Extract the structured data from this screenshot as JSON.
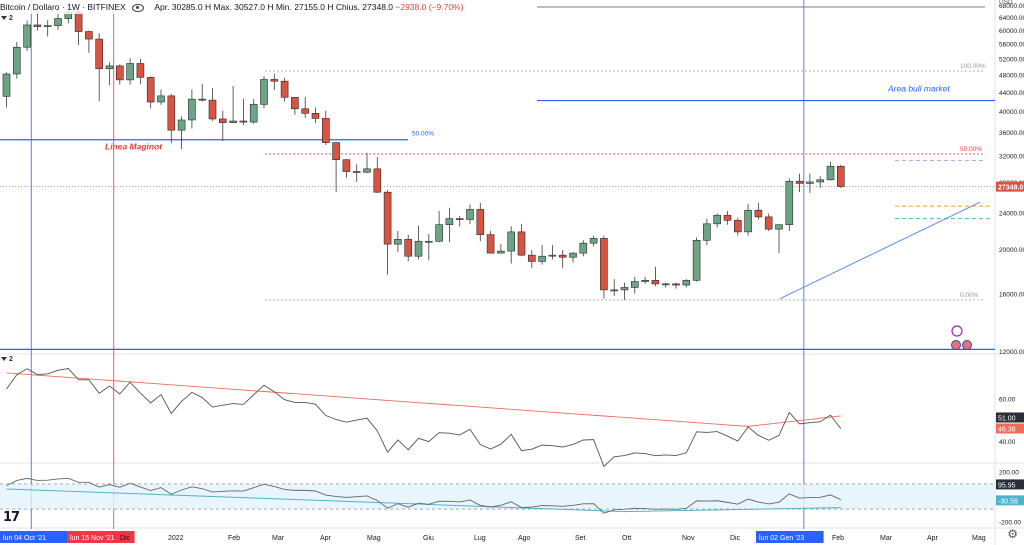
{
  "header": {
    "title": "Bitcoin / Dollaro · 1W · BITFINEX",
    "ohlc": "Apr. 30285.0  H  Max. 30527.0  H  Min. 27155.0  H  Chius. 27348.0",
    "change": "−2938.0 (−9.70%)"
  },
  "pane_badges": {
    "main": "2",
    "rsi": "2"
  },
  "currency_label": "USD",
  "price_axis": [
    "68000.00",
    "64000.00",
    "60000.00",
    "56000.00",
    "52000.00",
    "48000.00",
    "44000.00",
    "40000.00",
    "36000.00",
    "32000.00",
    "28000.00",
    "24000.00",
    "20000.00",
    "16000.00",
    "12000.00"
  ],
  "rsi_axis": [
    "60.00",
    "40.00"
  ],
  "cci_axis": [
    "200.00",
    "-200.00"
  ],
  "time_axis": [
    {
      "label": "lun 04 Oct '21",
      "highlight": "blue"
    },
    {
      "label": "lun 15 Nov '21",
      "highlight": "red"
    },
    {
      "label": "Dic"
    },
    {
      "label": "2022"
    },
    {
      "label": "Feb"
    },
    {
      "label": "Mar"
    },
    {
      "label": "Apr"
    },
    {
      "label": "Mag"
    },
    {
      "label": "Giu"
    },
    {
      "label": "Lug"
    },
    {
      "label": "Ago"
    },
    {
      "label": "Set"
    },
    {
      "label": "Ott"
    },
    {
      "label": "Nov"
    },
    {
      "label": "Dic"
    },
    {
      "label": "lun 02 Gen '23",
      "highlight": "blue"
    },
    {
      "label": "Feb"
    },
    {
      "label": "Mar"
    },
    {
      "label": "Apr"
    },
    {
      "label": "Mag"
    }
  ],
  "annotations": {
    "maginot": "Linea Maginot",
    "bull": "Area bull market",
    "fib_left_50": "50.00%",
    "fib_100": "100.00%",
    "fib_50": "50.00%",
    "fib_0": "0.00%"
  },
  "price_badges": {
    "last": "27348.0",
    "rsi_a": "51.00",
    "rsi_b": "46.38",
    "cci_a": "95.95",
    "cci_b": "-30.58"
  },
  "colors": {
    "up": "#6ba583",
    "down": "#d75442",
    "blue_line": "#2962ff",
    "red_vline": "#f23645",
    "ma_red": "#ef6c5a",
    "cci_ma": "#4fb3c9"
  },
  "chart_data": {
    "type": "candlestick",
    "timeframe": "1W",
    "symbol": "BTCUSD",
    "ylim": [
      12000,
      69000
    ],
    "candles": [
      {
        "t": "2021-09-27",
        "o": 43000,
        "h": 48500,
        "l": 40700,
        "c": 48100
      },
      {
        "t": "2021-10-04",
        "o": 48100,
        "h": 56500,
        "l": 47000,
        "c": 55000
      },
      {
        "t": "2021-10-11",
        "o": 55000,
        "h": 62900,
        "l": 54000,
        "c": 61500
      },
      {
        "t": "2021-10-18",
        "o": 61500,
        "h": 67000,
        "l": 59800,
        "c": 61000
      },
      {
        "t": "2021-10-25",
        "o": 61000,
        "h": 63000,
        "l": 58000,
        "c": 61300
      },
      {
        "t": "2021-11-01",
        "o": 61300,
        "h": 66500,
        "l": 60000,
        "c": 63500
      },
      {
        "t": "2021-11-08",
        "o": 63500,
        "h": 69000,
        "l": 62000,
        "c": 65500
      },
      {
        "t": "2021-11-15",
        "o": 65500,
        "h": 66300,
        "l": 55600,
        "c": 59500
      },
      {
        "t": "2021-11-22",
        "o": 59500,
        "h": 59800,
        "l": 53500,
        "c": 57300
      },
      {
        "t": "2021-11-29",
        "o": 57300,
        "h": 59000,
        "l": 42000,
        "c": 49400
      },
      {
        "t": "2021-12-06",
        "o": 49400,
        "h": 51000,
        "l": 45500,
        "c": 50100
      },
      {
        "t": "2021-12-13",
        "o": 50100,
        "h": 50500,
        "l": 45600,
        "c": 46700
      },
      {
        "t": "2021-12-20",
        "o": 46700,
        "h": 52000,
        "l": 45600,
        "c": 50700
      },
      {
        "t": "2021-12-27",
        "o": 50700,
        "h": 51900,
        "l": 45700,
        "c": 47300
      },
      {
        "t": "2022-01-03",
        "o": 47300,
        "h": 47500,
        "l": 40500,
        "c": 41800
      },
      {
        "t": "2022-01-10",
        "o": 41800,
        "h": 44500,
        "l": 41200,
        "c": 43100
      },
      {
        "t": "2022-01-17",
        "o": 43100,
        "h": 43500,
        "l": 34000,
        "c": 36300
      },
      {
        "t": "2022-01-24",
        "o": 36300,
        "h": 38900,
        "l": 33000,
        "c": 38200
      },
      {
        "t": "2022-01-31",
        "o": 38200,
        "h": 44500,
        "l": 36600,
        "c": 42400
      },
      {
        "t": "2022-02-07",
        "o": 42400,
        "h": 45800,
        "l": 41900,
        "c": 42200
      },
      {
        "t": "2022-02-14",
        "o": 42200,
        "h": 44800,
        "l": 38000,
        "c": 38400
      },
      {
        "t": "2022-02-21",
        "o": 38400,
        "h": 40000,
        "l": 34400,
        "c": 37700
      },
      {
        "t": "2022-02-28",
        "o": 37700,
        "h": 45300,
        "l": 37600,
        "c": 38000
      },
      {
        "t": "2022-03-07",
        "o": 38000,
        "h": 42500,
        "l": 37200,
        "c": 37800
      },
      {
        "t": "2022-03-14",
        "o": 37800,
        "h": 42400,
        "l": 37500,
        "c": 41300
      },
      {
        "t": "2022-03-21",
        "o": 41300,
        "h": 47600,
        "l": 40500,
        "c": 46800
      },
      {
        "t": "2022-03-28",
        "o": 46800,
        "h": 48200,
        "l": 44400,
        "c": 46400
      },
      {
        "t": "2022-04-04",
        "o": 46400,
        "h": 47200,
        "l": 41900,
        "c": 42800
      },
      {
        "t": "2022-04-11",
        "o": 42800,
        "h": 42900,
        "l": 39200,
        "c": 40400
      },
      {
        "t": "2022-04-18",
        "o": 40400,
        "h": 42900,
        "l": 38600,
        "c": 39500
      },
      {
        "t": "2022-04-25",
        "o": 39500,
        "h": 40700,
        "l": 37600,
        "c": 38500
      },
      {
        "t": "2022-05-02",
        "o": 38500,
        "h": 40000,
        "l": 33700,
        "c": 34100
      },
      {
        "t": "2022-05-09",
        "o": 34100,
        "h": 34200,
        "l": 26600,
        "c": 31300
      },
      {
        "t": "2022-05-16",
        "o": 31300,
        "h": 31400,
        "l": 28600,
        "c": 29500
      },
      {
        "t": "2022-05-23",
        "o": 29500,
        "h": 30600,
        "l": 28000,
        "c": 29400
      },
      {
        "t": "2022-05-30",
        "o": 29400,
        "h": 32400,
        "l": 29300,
        "c": 29900
      },
      {
        "t": "2022-06-06",
        "o": 29900,
        "h": 31700,
        "l": 26500,
        "c": 26600
      },
      {
        "t": "2022-06-13",
        "o": 26600,
        "h": 26900,
        "l": 17600,
        "c": 20500
      },
      {
        "t": "2022-06-20",
        "o": 20500,
        "h": 21900,
        "l": 19700,
        "c": 21000
      },
      {
        "t": "2022-06-27",
        "o": 21000,
        "h": 21500,
        "l": 18800,
        "c": 19300
      },
      {
        "t": "2022-07-04",
        "o": 19300,
        "h": 22500,
        "l": 19000,
        "c": 20800
      },
      {
        "t": "2022-07-11",
        "o": 20800,
        "h": 21600,
        "l": 18900,
        "c": 20800
      },
      {
        "t": "2022-07-18",
        "o": 20800,
        "h": 24200,
        "l": 20700,
        "c": 22600
      },
      {
        "t": "2022-07-25",
        "o": 22600,
        "h": 24600,
        "l": 20700,
        "c": 23300
      },
      {
        "t": "2022-08-01",
        "o": 23300,
        "h": 23600,
        "l": 22400,
        "c": 23200
      },
      {
        "t": "2022-08-08",
        "o": 23200,
        "h": 25000,
        "l": 22700,
        "c": 24400
      },
      {
        "t": "2022-08-15",
        "o": 24400,
        "h": 25200,
        "l": 20800,
        "c": 21500
      },
      {
        "t": "2022-08-22",
        "o": 21500,
        "h": 21900,
        "l": 19600,
        "c": 19600
      },
      {
        "t": "2022-08-29",
        "o": 19600,
        "h": 20500,
        "l": 19600,
        "c": 19800
      },
      {
        "t": "2022-09-05",
        "o": 19800,
        "h": 22400,
        "l": 18600,
        "c": 21800
      },
      {
        "t": "2022-09-12",
        "o": 21800,
        "h": 22700,
        "l": 19300,
        "c": 19400
      },
      {
        "t": "2022-09-19",
        "o": 19400,
        "h": 19900,
        "l": 18200,
        "c": 18800
      },
      {
        "t": "2022-09-26",
        "o": 18800,
        "h": 20400,
        "l": 18500,
        "c": 19300
      },
      {
        "t": "2022-10-03",
        "o": 19300,
        "h": 20400,
        "l": 19000,
        "c": 19400
      },
      {
        "t": "2022-10-10",
        "o": 19400,
        "h": 19900,
        "l": 18200,
        "c": 19200
      },
      {
        "t": "2022-10-17",
        "o": 19200,
        "h": 19700,
        "l": 18700,
        "c": 19600
      },
      {
        "t": "2022-10-24",
        "o": 19600,
        "h": 20900,
        "l": 19300,
        "c": 20600
      },
      {
        "t": "2022-10-31",
        "o": 20600,
        "h": 21400,
        "l": 20300,
        "c": 21100
      },
      {
        "t": "2022-11-07",
        "o": 21100,
        "h": 21400,
        "l": 15600,
        "c": 16300
      },
      {
        "t": "2022-11-14",
        "o": 16300,
        "h": 17200,
        "l": 15800,
        "c": 16300
      },
      {
        "t": "2022-11-21",
        "o": 16300,
        "h": 16900,
        "l": 15500,
        "c": 16500
      },
      {
        "t": "2022-11-28",
        "o": 16500,
        "h": 17400,
        "l": 16000,
        "c": 17000
      },
      {
        "t": "2022-12-05",
        "o": 17000,
        "h": 17400,
        "l": 16800,
        "c": 17100
      },
      {
        "t": "2022-12-12",
        "o": 17100,
        "h": 18300,
        "l": 16600,
        "c": 16800
      },
      {
        "t": "2022-12-19",
        "o": 16800,
        "h": 16900,
        "l": 16500,
        "c": 16800
      },
      {
        "t": "2022-12-26",
        "o": 16800,
        "h": 16900,
        "l": 16400,
        "c": 16700
      },
      {
        "t": "2023-01-02",
        "o": 16700,
        "h": 17200,
        "l": 16500,
        "c": 17100
      },
      {
        "t": "2023-01-09",
        "o": 17100,
        "h": 21200,
        "l": 17000,
        "c": 20900
      },
      {
        "t": "2023-01-16",
        "o": 20900,
        "h": 23300,
        "l": 20400,
        "c": 22700
      },
      {
        "t": "2023-01-23",
        "o": 22700,
        "h": 23900,
        "l": 22300,
        "c": 23700
      },
      {
        "t": "2023-01-30",
        "o": 23700,
        "h": 24200,
        "l": 22600,
        "c": 23100
      },
      {
        "t": "2023-02-06",
        "o": 23100,
        "h": 23400,
        "l": 21400,
        "c": 21800
      },
      {
        "t": "2023-02-13",
        "o": 21800,
        "h": 25100,
        "l": 21400,
        "c": 24300
      },
      {
        "t": "2023-02-20",
        "o": 24300,
        "h": 25200,
        "l": 23200,
        "c": 23500
      },
      {
        "t": "2023-02-27",
        "o": 23500,
        "h": 23900,
        "l": 21900,
        "c": 22100
      },
      {
        "t": "2023-03-06",
        "o": 22100,
        "h": 22300,
        "l": 19600,
        "c": 22600
      },
      {
        "t": "2023-03-13",
        "o": 22600,
        "h": 28500,
        "l": 21900,
        "c": 28100
      },
      {
        "t": "2023-03-20",
        "o": 28100,
        "h": 29200,
        "l": 26600,
        "c": 27800
      },
      {
        "t": "2023-03-27",
        "o": 27800,
        "h": 29200,
        "l": 26500,
        "c": 28000
      },
      {
        "t": "2023-04-03",
        "o": 28000,
        "h": 28800,
        "l": 27200,
        "c": 28300
      },
      {
        "t": "2023-04-10",
        "o": 28300,
        "h": 31000,
        "l": 28200,
        "c": 30300
      },
      {
        "t": "2023-04-17",
        "o": 30285,
        "h": 30527,
        "l": 27155,
        "c": 27348
      }
    ],
    "hlines": [
      {
        "name": "Linea Maginot",
        "price": 34600
      },
      {
        "name": "Area bull market",
        "price": 42100
      },
      {
        "name": "level",
        "price": 12100
      }
    ],
    "fib_levels": [
      {
        "label": "100.00%",
        "price": 48800
      },
      {
        "label": "50.00%",
        "price": 32200
      },
      {
        "label": "0.00%",
        "price": 15500
      }
    ],
    "rsi": {
      "last": 51.0,
      "ma_last": 46.38,
      "ylim": [
        30,
        80
      ]
    },
    "cci": {
      "last": 95.95,
      "ma_last": -30.58,
      "ylim": [
        -250,
        250
      ]
    }
  }
}
